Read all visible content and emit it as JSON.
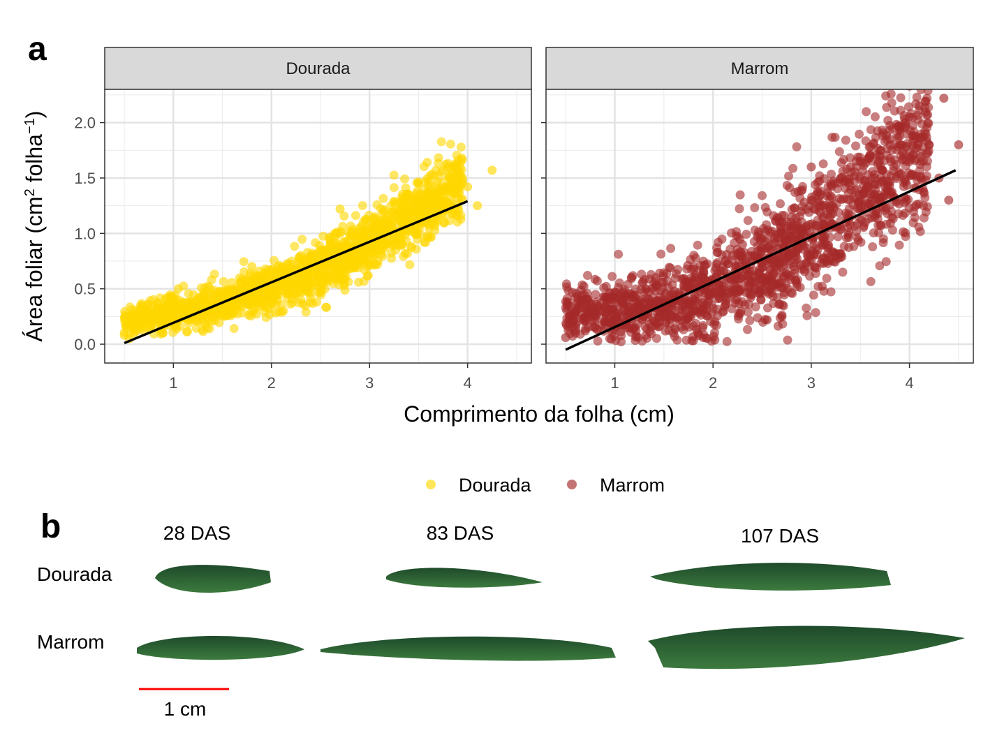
{
  "panel_a_letter": "a",
  "panel_b_letter": "b",
  "chart_data": {
    "type": "scatter",
    "facets": [
      "Dourada",
      "Marrom"
    ],
    "xlabel": "Comprimento da folha (cm)",
    "ylabel": {
      "prefix": "Área foliar (cm",
      "sup1": "2",
      "mid": " folha",
      "sup2": "−1",
      "suffix": ")"
    },
    "xlim": [
      0.3,
      4.65
    ],
    "ylim": [
      -0.17,
      2.3
    ],
    "x_ticks": [
      1,
      2,
      3,
      4
    ],
    "y_ticks": [
      0.0,
      0.5,
      1.0,
      1.5,
      2.0
    ],
    "y_tick_labels": [
      "0.0",
      "0.5",
      "1.0",
      "1.5",
      "2.0"
    ],
    "grid": true,
    "legend_position": "bottom",
    "series": [
      {
        "name": "Dourada",
        "color": "#FFD700",
        "x_range": [
          0.5,
          4.25
        ],
        "fit_line": {
          "x": [
            0.5,
            4.0
          ],
          "y": [
            0.01,
            1.29
          ]
        },
        "points": [
          [
            0.5,
            0.08
          ],
          [
            0.55,
            0.05
          ],
          [
            0.6,
            0.1
          ],
          [
            0.7,
            0.12
          ],
          [
            0.8,
            0.15
          ],
          [
            0.9,
            0.2
          ],
          [
            1.0,
            0.23
          ],
          [
            1.05,
            0.5
          ],
          [
            1.1,
            0.24
          ],
          [
            1.2,
            0.3
          ],
          [
            1.3,
            0.32
          ],
          [
            1.4,
            0.36
          ],
          [
            1.5,
            0.38
          ],
          [
            1.6,
            0.45
          ],
          [
            1.7,
            0.5
          ],
          [
            1.8,
            0.55
          ],
          [
            1.8,
            0.7
          ],
          [
            1.9,
            0.6
          ],
          [
            2.0,
            0.55
          ],
          [
            2.1,
            0.65
          ],
          [
            2.2,
            0.72
          ],
          [
            2.3,
            0.8
          ],
          [
            2.4,
            0.78
          ],
          [
            2.5,
            0.85
          ],
          [
            2.6,
            0.9
          ],
          [
            2.7,
            1.0
          ],
          [
            2.7,
            1.22
          ],
          [
            2.8,
            0.98
          ],
          [
            2.9,
            1.05
          ],
          [
            3.0,
            1.1
          ],
          [
            3.1,
            1.05
          ],
          [
            3.2,
            1.15
          ],
          [
            3.3,
            1.2
          ],
          [
            3.4,
            1.25
          ],
          [
            3.5,
            1.3
          ],
          [
            3.6,
            1.32
          ],
          [
            3.7,
            1.4
          ],
          [
            3.8,
            1.38
          ],
          [
            3.9,
            1.45
          ],
          [
            3.92,
            1.52
          ],
          [
            4.0,
            1.42
          ],
          [
            4.1,
            1.25
          ],
          [
            4.25,
            1.57
          ]
        ]
      },
      {
        "name": "Marrom",
        "color": "#A52A2A",
        "x_range": [
          0.5,
          4.5
        ],
        "fit_line": {
          "x": [
            0.5,
            4.47
          ],
          "y": [
            -0.05,
            1.57
          ]
        },
        "points": [
          [
            0.5,
            0.06
          ],
          [
            0.6,
            0.1
          ],
          [
            0.7,
            0.12
          ],
          [
            0.8,
            0.15
          ],
          [
            0.9,
            0.2
          ],
          [
            1.0,
            0.22
          ],
          [
            1.2,
            0.28
          ],
          [
            1.4,
            0.33
          ],
          [
            1.6,
            0.42
          ],
          [
            1.8,
            0.5
          ],
          [
            1.9,
            0.6
          ],
          [
            2.0,
            0.55
          ],
          [
            2.1,
            0.7
          ],
          [
            2.2,
            0.8
          ],
          [
            2.3,
            0.9
          ],
          [
            2.4,
            0.75
          ],
          [
            2.5,
            0.95
          ],
          [
            2.55,
            0.22
          ],
          [
            2.6,
            1.02
          ],
          [
            2.7,
            1.1
          ],
          [
            2.8,
            1.15
          ],
          [
            2.9,
            1.2
          ],
          [
            3.0,
            1.3
          ],
          [
            3.0,
            1.6
          ],
          [
            3.1,
            1.35
          ],
          [
            3.2,
            1.45
          ],
          [
            3.3,
            1.5
          ],
          [
            3.4,
            1.6
          ],
          [
            3.5,
            1.65
          ],
          [
            3.6,
            1.7
          ],
          [
            3.7,
            1.75
          ],
          [
            3.8,
            1.85
          ],
          [
            3.9,
            1.95
          ],
          [
            4.0,
            2.05
          ],
          [
            4.1,
            2.15
          ],
          [
            4.2,
            1.8
          ],
          [
            4.3,
            1.5
          ],
          [
            4.35,
            2.22
          ],
          [
            4.4,
            1.3
          ],
          [
            4.5,
            1.8
          ]
        ]
      }
    ]
  },
  "panel_b": {
    "columns": [
      "28 DAS",
      "83 DAS",
      "107 DAS"
    ],
    "rows": [
      "Dourada",
      "Marrom"
    ],
    "scale_bar_label": "1 cm",
    "scale_bar_color": "#FF0000",
    "leaf_color_dark": "#1E4A2A",
    "leaf_color_light": "#3C7A3E"
  }
}
